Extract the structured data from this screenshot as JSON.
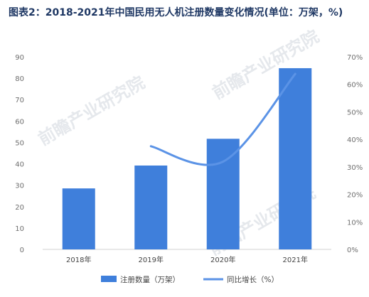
{
  "chart_data": {
    "type": "bar+line",
    "title": "图表2：2018-2021年中国民用无人机注册数量变化情况(单位：万架，%)",
    "categories": [
      "2018年",
      "2019年",
      "2020年",
      "2021年"
    ],
    "series": [
      {
        "name": "注册数量（万架）",
        "type": "bar",
        "axis": "left",
        "color": "#3f7fdb",
        "values": [
          28.5,
          39.2,
          51.7,
          84.7
        ]
      },
      {
        "name": "同比增长（%）",
        "type": "line",
        "axis": "right",
        "color": "#5b93e6",
        "values": [
          null,
          37.5,
          31.9,
          63.8
        ]
      }
    ],
    "y_left": {
      "min": 0,
      "max": 90,
      "ticks": [
        "0",
        "10",
        "20",
        "30",
        "40",
        "50",
        "60",
        "70",
        "80",
        "90"
      ]
    },
    "y_right": {
      "min": 0,
      "max": 70,
      "ticks": [
        "0%",
        "10%",
        "20%",
        "30%",
        "40%",
        "50%",
        "60%",
        "70%"
      ]
    },
    "grid": false,
    "legend_position": "bottom"
  },
  "watermark": "前瞻产业研究院"
}
